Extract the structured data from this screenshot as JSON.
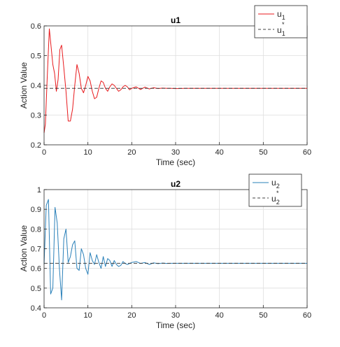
{
  "chart_data": [
    {
      "type": "line",
      "title": "u1",
      "xlabel": "Time (sec)",
      "ylabel": "Action Value",
      "xlim": [
        0,
        60
      ],
      "ylim": [
        0.2,
        0.6
      ],
      "xticks": [
        0,
        10,
        20,
        30,
        40,
        50,
        60
      ],
      "yticks": [
        0.2,
        0.3,
        0.4,
        0.5,
        0.6
      ],
      "grid": true,
      "legend_position": "top-right",
      "series": [
        {
          "name": "u",
          "subscript": "1",
          "style": "solid",
          "color": "#e8191c",
          "x": [
            0,
            0.3,
            0.7,
            1.2,
            1.6,
            2.0,
            2.4,
            2.8,
            3.2,
            3.6,
            4.0,
            4.5,
            5.0,
            5.5,
            6.0,
            6.5,
            7.0,
            7.5,
            8.0,
            8.5,
            9.0,
            9.5,
            10.0,
            10.5,
            11.0,
            11.5,
            12.0,
            12.5,
            13.0,
            13.5,
            14.0,
            14.5,
            15.0,
            15.5,
            16.0,
            16.5,
            17.0,
            17.5,
            18.0,
            18.5,
            19.0,
            19.5,
            20.0,
            21.0,
            22.0,
            23.0,
            24.0,
            25.0,
            26.0,
            27.0,
            28.0,
            29.0,
            30.0,
            32.0,
            35.0,
            40.0,
            45.0,
            50.0,
            55.0,
            60.0
          ],
          "y": [
            0.24,
            0.27,
            0.42,
            0.59,
            0.53,
            0.47,
            0.44,
            0.38,
            0.42,
            0.52,
            0.535,
            0.46,
            0.38,
            0.28,
            0.28,
            0.32,
            0.4,
            0.47,
            0.44,
            0.39,
            0.375,
            0.4,
            0.43,
            0.415,
            0.38,
            0.355,
            0.36,
            0.39,
            0.415,
            0.41,
            0.39,
            0.38,
            0.395,
            0.405,
            0.4,
            0.39,
            0.38,
            0.385,
            0.395,
            0.4,
            0.395,
            0.385,
            0.39,
            0.395,
            0.386,
            0.394,
            0.388,
            0.392,
            0.389,
            0.391,
            0.39,
            0.39,
            0.389,
            0.39,
            0.39,
            0.39,
            0.39,
            0.39,
            0.39,
            0.39
          ]
        },
        {
          "name": "u",
          "subscript": "1",
          "superscript": "*",
          "style": "dashed",
          "color": "#404040",
          "x": [
            0,
            60
          ],
          "y": [
            0.39,
            0.39
          ]
        }
      ]
    },
    {
      "type": "line",
      "title": "u2",
      "xlabel": "Time (sec)",
      "ylabel": "Action Value",
      "xlim": [
        0,
        60
      ],
      "ylim": [
        0.4,
        1.0
      ],
      "xticks": [
        0,
        10,
        20,
        30,
        40,
        50,
        60
      ],
      "yticks": [
        0.4,
        0.5,
        0.6,
        0.7,
        0.8,
        0.9,
        1.0
      ],
      "ytick_labels": [
        "0.4",
        "0.5",
        "0.6",
        "0.7",
        "0.8",
        "0.9",
        "1"
      ],
      "grid": true,
      "legend_position": "top-right",
      "series": [
        {
          "name": "u",
          "subscript": "2",
          "style": "solid",
          "color": "#2a80b9",
          "x": [
            0,
            0.5,
            1.0,
            1.5,
            2.0,
            2.5,
            3.0,
            3.5,
            4.0,
            4.5,
            5.0,
            5.5,
            6.0,
            6.5,
            7.0,
            7.5,
            8.0,
            8.5,
            9.0,
            9.5,
            10.0,
            10.5,
            11.0,
            11.5,
            12.0,
            12.5,
            13.0,
            13.5,
            14.0,
            14.5,
            15.0,
            15.5,
            16.0,
            16.5,
            17.0,
            17.5,
            18.0,
            18.5,
            19.0,
            19.5,
            20.0,
            21.0,
            22.0,
            23.0,
            24.0,
            25.0,
            26.0,
            27.0,
            28.0,
            29.0,
            30.0,
            32.0,
            35.0,
            40.0,
            45.0,
            50.0,
            55.0,
            60.0
          ],
          "y": [
            0.62,
            0.92,
            0.95,
            0.47,
            0.5,
            0.91,
            0.83,
            0.6,
            0.44,
            0.75,
            0.8,
            0.63,
            0.66,
            0.72,
            0.74,
            0.6,
            0.59,
            0.7,
            0.67,
            0.6,
            0.57,
            0.68,
            0.64,
            0.62,
            0.67,
            0.63,
            0.6,
            0.66,
            0.61,
            0.65,
            0.64,
            0.61,
            0.64,
            0.62,
            0.61,
            0.615,
            0.635,
            0.625,
            0.62,
            0.625,
            0.63,
            0.635,
            0.625,
            0.63,
            0.62,
            0.628,
            0.624,
            0.627,
            0.625,
            0.626,
            0.626,
            0.626,
            0.626,
            0.626,
            0.626,
            0.626,
            0.626,
            0.626
          ]
        },
        {
          "name": "u",
          "subscript": "2",
          "superscript": "*",
          "style": "dashed",
          "color": "#404040",
          "x": [
            0,
            60
          ],
          "y": [
            0.626,
            0.626
          ]
        }
      ]
    }
  ]
}
